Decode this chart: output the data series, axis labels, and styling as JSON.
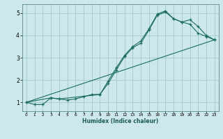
{
  "title": "",
  "xlabel": "Humidex (Indice chaleur)",
  "ylabel": "",
  "bg_color": "#cce8ec",
  "grid_color": "#aacccc",
  "line_color": "#1a6b5e",
  "xlim": [
    -0.5,
    23.5
  ],
  "ylim": [
    0.6,
    5.4
  ],
  "xticks": [
    0,
    1,
    2,
    3,
    4,
    5,
    6,
    7,
    8,
    9,
    10,
    11,
    12,
    13,
    14,
    15,
    16,
    17,
    18,
    19,
    20,
    21,
    22,
    23
  ],
  "yticks": [
    1,
    2,
    3,
    4,
    5
  ],
  "line1_x": [
    0,
    1,
    2,
    3,
    4,
    5,
    6,
    7,
    8,
    9,
    10,
    11,
    12,
    13,
    14,
    15,
    16,
    17,
    18,
    19,
    20,
    21,
    22,
    23
  ],
  "line1_y": [
    1.0,
    0.9,
    0.9,
    1.2,
    1.15,
    1.1,
    1.15,
    1.25,
    1.35,
    1.35,
    1.85,
    2.45,
    3.05,
    3.45,
    3.65,
    4.25,
    4.9,
    5.05,
    4.75,
    4.6,
    4.5,
    4.1,
    3.95,
    3.8
  ],
  "line2_x": [
    0,
    3,
    4,
    9,
    10,
    11,
    12,
    13,
    14,
    15,
    16,
    17,
    18,
    19,
    20,
    21,
    22,
    23
  ],
  "line2_y": [
    1.0,
    1.2,
    1.15,
    1.35,
    1.95,
    2.55,
    3.1,
    3.5,
    3.75,
    4.3,
    4.95,
    5.1,
    4.75,
    4.6,
    4.7,
    4.4,
    4.0,
    3.8
  ],
  "line3_x": [
    0,
    23
  ],
  "line3_y": [
    1.0,
    3.8
  ]
}
